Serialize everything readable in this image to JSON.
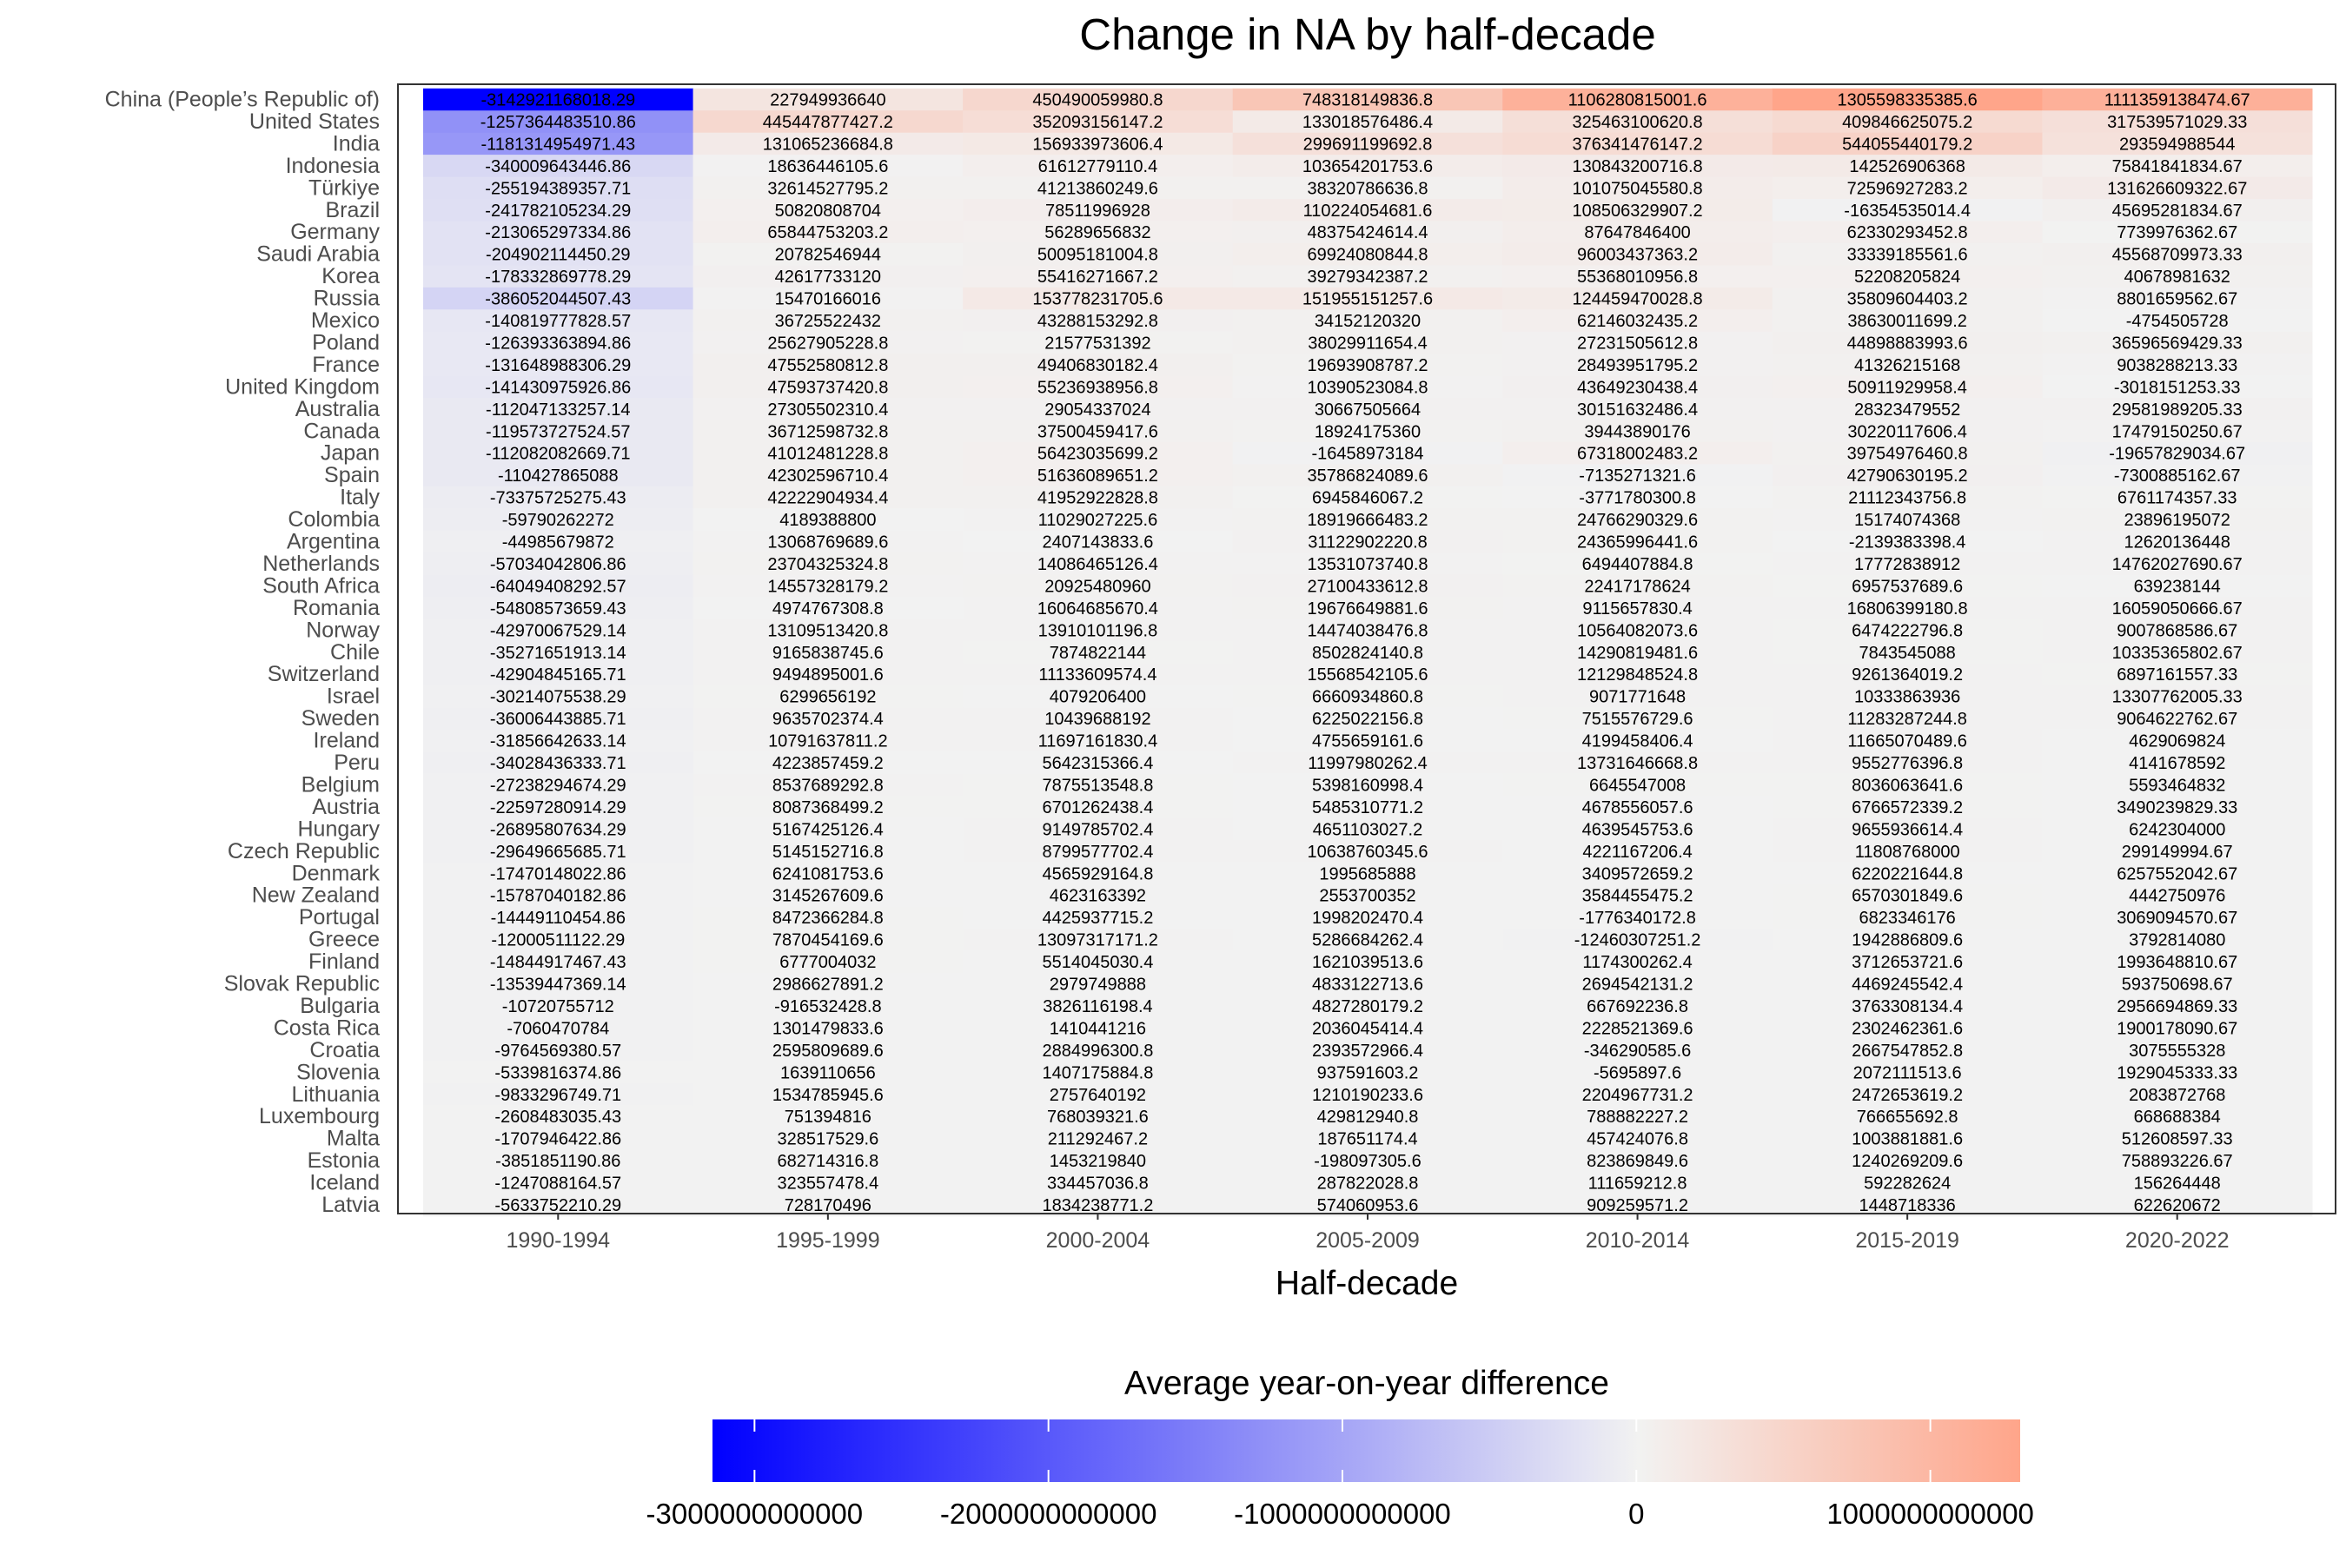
{
  "chart_data": {
    "type": "heatmap",
    "title": "Change in NA by half-decade",
    "xlabel": "Half-decade",
    "ylabel": "",
    "columns": [
      "1990-1994",
      "1995-1999",
      "2000-2004",
      "2005-2009",
      "2010-2014",
      "2015-2019",
      "2020-2022"
    ],
    "rows": [
      {
        "name": "China (People’s Republic of)",
        "values": [
          "-3142921168018.29",
          "227949936640",
          "450490059980.8",
          "748318149836.8",
          "1106280815001.6",
          "1305598335385.6",
          "1111359138474.67"
        ]
      },
      {
        "name": "United States",
        "values": [
          "-1257364483510.86",
          "445447877427.2",
          "352093156147.2",
          "133018576486.4",
          "325463100620.8",
          "409846625075.2",
          "317539571029.33"
        ]
      },
      {
        "name": "India",
        "values": [
          "-1181314954971.43",
          "131065236684.8",
          "156933973606.4",
          "299691199692.8",
          "376341476147.2",
          "544055440179.2",
          "293594988544"
        ]
      },
      {
        "name": "Indonesia",
        "values": [
          "-340009643446.86",
          "18636446105.6",
          "61612779110.4",
          "103654201753.6",
          "130843200716.8",
          "142526906368",
          "75841841834.67"
        ]
      },
      {
        "name": "Türkiye",
        "values": [
          "-255194389357.71",
          "32614527795.2",
          "41213860249.6",
          "38320786636.8",
          "101075045580.8",
          "72596927283.2",
          "131626609322.67"
        ]
      },
      {
        "name": "Brazil",
        "values": [
          "-241782105234.29",
          "50820808704",
          "78511996928",
          "110224054681.6",
          "108506329907.2",
          "-16354535014.4",
          "45695281834.67"
        ]
      },
      {
        "name": "Germany",
        "values": [
          "-213065297334.86",
          "65844753203.2",
          "56289656832",
          "48375424614.4",
          "87647846400",
          "62330293452.8",
          "7739976362.67"
        ]
      },
      {
        "name": "Saudi Arabia",
        "values": [
          "-204902114450.29",
          "20782546944",
          "50095181004.8",
          "69924080844.8",
          "96003437363.2",
          "33339185561.6",
          "45568709973.33"
        ]
      },
      {
        "name": "Korea",
        "values": [
          "-178332869778.29",
          "42617733120",
          "55416271667.2",
          "39279342387.2",
          "55368010956.8",
          "52208205824",
          "40678981632"
        ]
      },
      {
        "name": "Russia",
        "values": [
          "-386052044507.43",
          "15470166016",
          "153778231705.6",
          "151955151257.6",
          "124459470028.8",
          "35809604403.2",
          "8801659562.67"
        ]
      },
      {
        "name": "Mexico",
        "values": [
          "-140819777828.57",
          "36725522432",
          "43288153292.8",
          "34152120320",
          "62146032435.2",
          "38630011699.2",
          "-4754505728"
        ]
      },
      {
        "name": "Poland",
        "values": [
          "-126393363894.86",
          "25627905228.8",
          "21577531392",
          "38029911654.4",
          "27231505612.8",
          "44898883993.6",
          "36596569429.33"
        ]
      },
      {
        "name": "France",
        "values": [
          "-131648988306.29",
          "47552580812.8",
          "49406830182.4",
          "19693908787.2",
          "28493951795.2",
          "41326215168",
          "9038288213.33"
        ]
      },
      {
        "name": "United Kingdom",
        "values": [
          "-141430975926.86",
          "47593737420.8",
          "55236938956.8",
          "10390523084.8",
          "43649230438.4",
          "50911929958.4",
          "-3018151253.33"
        ]
      },
      {
        "name": "Australia",
        "values": [
          "-112047133257.14",
          "27305502310.4",
          "29054337024",
          "30667505664",
          "30151632486.4",
          "28323479552",
          "29581989205.33"
        ]
      },
      {
        "name": "Canada",
        "values": [
          "-119573727524.57",
          "36712598732.8",
          "37500459417.6",
          "18924175360",
          "39443890176",
          "30220117606.4",
          "17479150250.67"
        ]
      },
      {
        "name": "Japan",
        "values": [
          "-112082082669.71",
          "41012481228.8",
          "56423035699.2",
          "-16458973184",
          "67318002483.2",
          "39754976460.8",
          "-19657829034.67"
        ]
      },
      {
        "name": "Spain",
        "values": [
          "-110427865088",
          "42302596710.4",
          "51636089651.2",
          "35786824089.6",
          "-7135271321.6",
          "42790630195.2",
          "-7300885162.67"
        ]
      },
      {
        "name": "Italy",
        "values": [
          "-73375725275.43",
          "42222904934.4",
          "41952922828.8",
          "6945846067.2",
          "-3771780300.8",
          "21112343756.8",
          "6761174357.33"
        ]
      },
      {
        "name": "Colombia",
        "values": [
          "-59790262272",
          "4189388800",
          "11029027225.6",
          "18919666483.2",
          "24766290329.6",
          "15174074368",
          "23896195072"
        ]
      },
      {
        "name": "Argentina",
        "values": [
          "-44985679872",
          "13068769689.6",
          "2407143833.6",
          "31122902220.8",
          "24365996441.6",
          "-2139383398.4",
          "12620136448"
        ]
      },
      {
        "name": "Netherlands",
        "values": [
          "-57034042806.86",
          "23704325324.8",
          "14086465126.4",
          "13531073740.8",
          "6494407884.8",
          "17772838912",
          "14762027690.67"
        ]
      },
      {
        "name": "South Africa",
        "values": [
          "-64049408292.57",
          "14557328179.2",
          "20925480960",
          "27100433612.8",
          "22417178624",
          "6957537689.6",
          "639238144"
        ]
      },
      {
        "name": "Romania",
        "values": [
          "-54808573659.43",
          "4974767308.8",
          "16064685670.4",
          "19676649881.6",
          "9115657830.4",
          "16806399180.8",
          "16059050666.67"
        ]
      },
      {
        "name": "Norway",
        "values": [
          "-42970067529.14",
          "13109513420.8",
          "13910101196.8",
          "14474038476.8",
          "10564082073.6",
          "6474222796.8",
          "9007868586.67"
        ]
      },
      {
        "name": "Chile",
        "values": [
          "-35271651913.14",
          "9165838745.6",
          "7874822144",
          "8502824140.8",
          "14290819481.6",
          "7843545088",
          "10335365802.67"
        ]
      },
      {
        "name": "Switzerland",
        "values": [
          "-42904845165.71",
          "9494895001.6",
          "11133609574.4",
          "15568542105.6",
          "12129848524.8",
          "9261364019.2",
          "6897161557.33"
        ]
      },
      {
        "name": "Israel",
        "values": [
          "-30214075538.29",
          "6299656192",
          "4079206400",
          "6660934860.8",
          "9071771648",
          "10333863936",
          "13307762005.33"
        ]
      },
      {
        "name": "Sweden",
        "values": [
          "-36006443885.71",
          "9635702374.4",
          "10439688192",
          "6225022156.8",
          "7515576729.6",
          "11283287244.8",
          "9064622762.67"
        ]
      },
      {
        "name": "Ireland",
        "values": [
          "-31856642633.14",
          "10791637811.2",
          "11697161830.4",
          "4755659161.6",
          "4199458406.4",
          "11665070489.6",
          "4629069824"
        ]
      },
      {
        "name": "Peru",
        "values": [
          "-34028436333.71",
          "4223857459.2",
          "5642315366.4",
          "11997980262.4",
          "13731646668.8",
          "9552776396.8",
          "4141678592"
        ]
      },
      {
        "name": "Belgium",
        "values": [
          "-27238294674.29",
          "8537689292.8",
          "7875513548.8",
          "5398160998.4",
          "6645547008",
          "8036063641.6",
          "5593464832"
        ]
      },
      {
        "name": "Austria",
        "values": [
          "-22597280914.29",
          "8087368499.2",
          "6701262438.4",
          "5485310771.2",
          "4678556057.6",
          "6766572339.2",
          "3490239829.33"
        ]
      },
      {
        "name": "Hungary",
        "values": [
          "-26895807634.29",
          "5167425126.4",
          "9149785702.4",
          "4651103027.2",
          "4639545753.6",
          "9655936614.4",
          "6242304000"
        ]
      },
      {
        "name": "Czech Republic",
        "values": [
          "-29649665685.71",
          "5145152716.8",
          "8799577702.4",
          "10638760345.6",
          "4221167206.4",
          "11808768000",
          "299149994.67"
        ]
      },
      {
        "name": "Denmark",
        "values": [
          "-17470148022.86",
          "6241081753.6",
          "4565929164.8",
          "1995685888",
          "3409572659.2",
          "6220221644.8",
          "6257552042.67"
        ]
      },
      {
        "name": "New Zealand",
        "values": [
          "-15787040182.86",
          "3145267609.6",
          "4623163392",
          "2553700352",
          "3584455475.2",
          "6570301849.6",
          "4442750976"
        ]
      },
      {
        "name": "Portugal",
        "values": [
          "-14449110454.86",
          "8472366284.8",
          "4425937715.2",
          "1998202470.4",
          "-1776340172.8",
          "6823346176",
          "3069094570.67"
        ]
      },
      {
        "name": "Greece",
        "values": [
          "-12000511122.29",
          "7870454169.6",
          "13097317171.2",
          "5286684262.4",
          "-12460307251.2",
          "1942886809.6",
          "3792814080"
        ]
      },
      {
        "name": "Finland",
        "values": [
          "-14844917467.43",
          "6777004032",
          "5514045030.4",
          "1621039513.6",
          "1174300262.4",
          "3712653721.6",
          "1993648810.67"
        ]
      },
      {
        "name": "Slovak Republic",
        "values": [
          "-13539447369.14",
          "2986627891.2",
          "2979749888",
          "4833122713.6",
          "2694542131.2",
          "4469245542.4",
          "593750698.67"
        ]
      },
      {
        "name": "Bulgaria",
        "values": [
          "-10720755712",
          "-916532428.8",
          "3826116198.4",
          "4827280179.2",
          "667692236.8",
          "3763308134.4",
          "2956694869.33"
        ]
      },
      {
        "name": "Costa Rica",
        "values": [
          "-7060470784",
          "1301479833.6",
          "1410441216",
          "2036045414.4",
          "2228521369.6",
          "2302462361.6",
          "1900178090.67"
        ]
      },
      {
        "name": "Croatia",
        "values": [
          "-9764569380.57",
          "2595809689.6",
          "2884996300.8",
          "2393572966.4",
          "-346290585.6",
          "2667547852.8",
          "3075555328"
        ]
      },
      {
        "name": "Slovenia",
        "values": [
          "-5339816374.86",
          "1639110656",
          "1407175884.8",
          "937591603.2",
          "-5695897.6",
          "2072111513.6",
          "1929045333.33"
        ]
      },
      {
        "name": "Lithuania",
        "values": [
          "-9833296749.71",
          "1534785945.6",
          "2757640192",
          "1210190233.6",
          "2204967731.2",
          "2472653619.2",
          "2083872768"
        ]
      },
      {
        "name": "Luxembourg",
        "values": [
          "-2608483035.43",
          "751394816",
          "768039321.6",
          "429812940.8",
          "788882227.2",
          "766655692.8",
          "668688384"
        ]
      },
      {
        "name": "Malta",
        "values": [
          "-1707946422.86",
          "328517529.6",
          "211292467.2",
          "187651174.4",
          "457424076.8",
          "1003881881.6",
          "512608597.33"
        ]
      },
      {
        "name": "Estonia",
        "values": [
          "-3851851190.86",
          "682714316.8",
          "1453219840",
          "-198097305.6",
          "823869849.6",
          "1240269209.6",
          "758893226.67"
        ]
      },
      {
        "name": "Iceland",
        "values": [
          "-1247088164.57",
          "323557478.4",
          "334457036.8",
          "287822028.8",
          "111659212.8",
          "592282624",
          "156264448"
        ]
      },
      {
        "name": "Latvia",
        "values": [
          "-5633752210.29",
          "728170496",
          "1834238771.2",
          "574060953.6",
          "909259571.2",
          "1448718336",
          "622620672"
        ]
      }
    ],
    "color_scale": {
      "title": "Average year-on-year difference",
      "low_color": "#0000ff",
      "mid_color": "#f2f2f2",
      "high_color": "#ffa58a",
      "min": -3142921168018.29,
      "mid": 0,
      "max": 1305598335385.6,
      "ticks": [
        -3000000000000,
        -2000000000000,
        -1000000000000,
        0,
        1000000000000
      ],
      "tick_labels": [
        "-3000000000000",
        "-2000000000000",
        "-1000000000000",
        "0",
        "1000000000000"
      ],
      "position": "bottom"
    }
  }
}
